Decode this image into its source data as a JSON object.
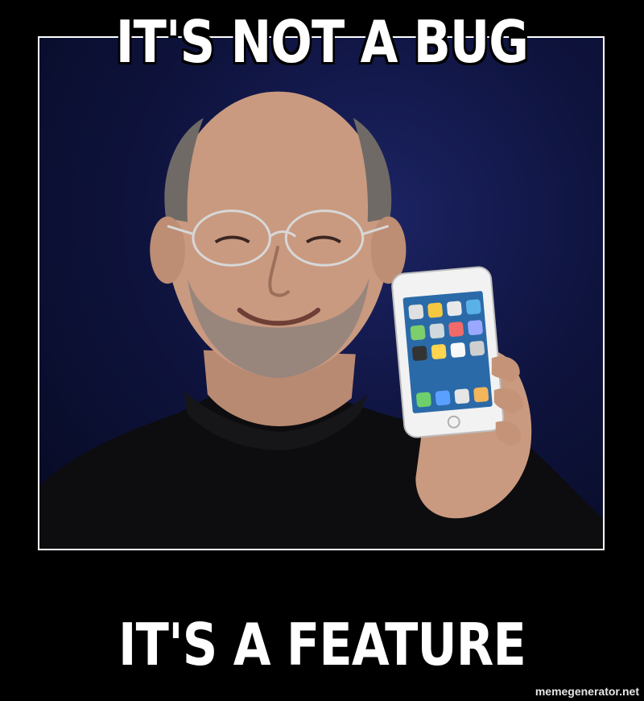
{
  "meme": {
    "top_text": "IT'S NOT A BUG",
    "bottom_text": "IT'S A FEATURE",
    "watermark": "memegenerator.net"
  },
  "colors": {
    "background": "#000000",
    "frame_border": "#ffffff",
    "backdrop": "#0f1440",
    "text": "#ffffff"
  }
}
